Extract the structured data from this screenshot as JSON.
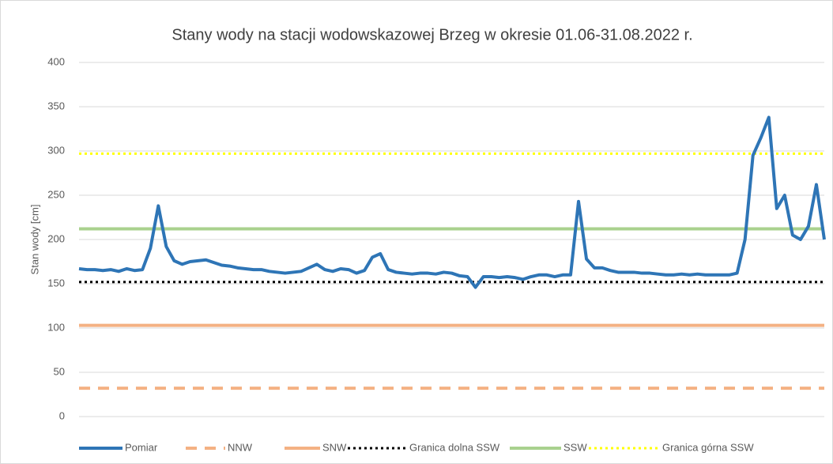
{
  "chart_data": {
    "type": "line",
    "title": "Stany wody na stacji wodowskazowej Brzeg w okresie 01.06-31.08.2022 r.",
    "y_label": "Stan wody [cm]",
    "ylim": [
      0,
      400
    ],
    "yticks": [
      0,
      50,
      100,
      150,
      200,
      250,
      300,
      350,
      400
    ],
    "grid": true,
    "legend": "bottom",
    "series": [
      {
        "name": "Pomiar",
        "color": "#2e75b6",
        "style": "solid",
        "values": [
          167,
          166,
          166,
          165,
          166,
          164,
          167,
          165,
          166,
          190,
          238,
          192,
          176,
          172,
          175,
          176,
          177,
          174,
          171,
          170,
          168,
          167,
          166,
          166,
          164,
          163,
          162,
          163,
          164,
          168,
          172,
          166,
          164,
          167,
          166,
          162,
          165,
          180,
          184,
          166,
          163,
          162,
          161,
          162,
          162,
          161,
          163,
          162,
          159,
          158,
          146,
          158,
          158,
          157,
          158,
          157,
          155,
          158,
          160,
          160,
          158,
          160,
          160,
          243,
          178,
          168,
          168,
          165,
          163,
          163,
          163,
          162,
          162,
          161,
          160,
          160,
          161,
          160,
          161,
          160,
          160,
          160,
          160,
          162,
          200,
          295,
          315,
          338,
          235,
          250,
          205,
          200,
          215,
          262,
          200
        ]
      }
    ],
    "reference_lines": [
      {
        "name": "NNW",
        "color": "#f4b183",
        "style": "dashed",
        "value": 32
      },
      {
        "name": "SNW",
        "color": "#f4b183",
        "style": "solid",
        "value": 103
      },
      {
        "name": "Granica dolna SSW",
        "color": "#000000",
        "style": "dotted",
        "value": 152
      },
      {
        "name": "SSW",
        "color": "#a9d18e",
        "style": "solid",
        "value": 212
      },
      {
        "name": "Granica górna SSW",
        "color": "#ffff00",
        "style": "dotted",
        "value": 297
      }
    ]
  }
}
